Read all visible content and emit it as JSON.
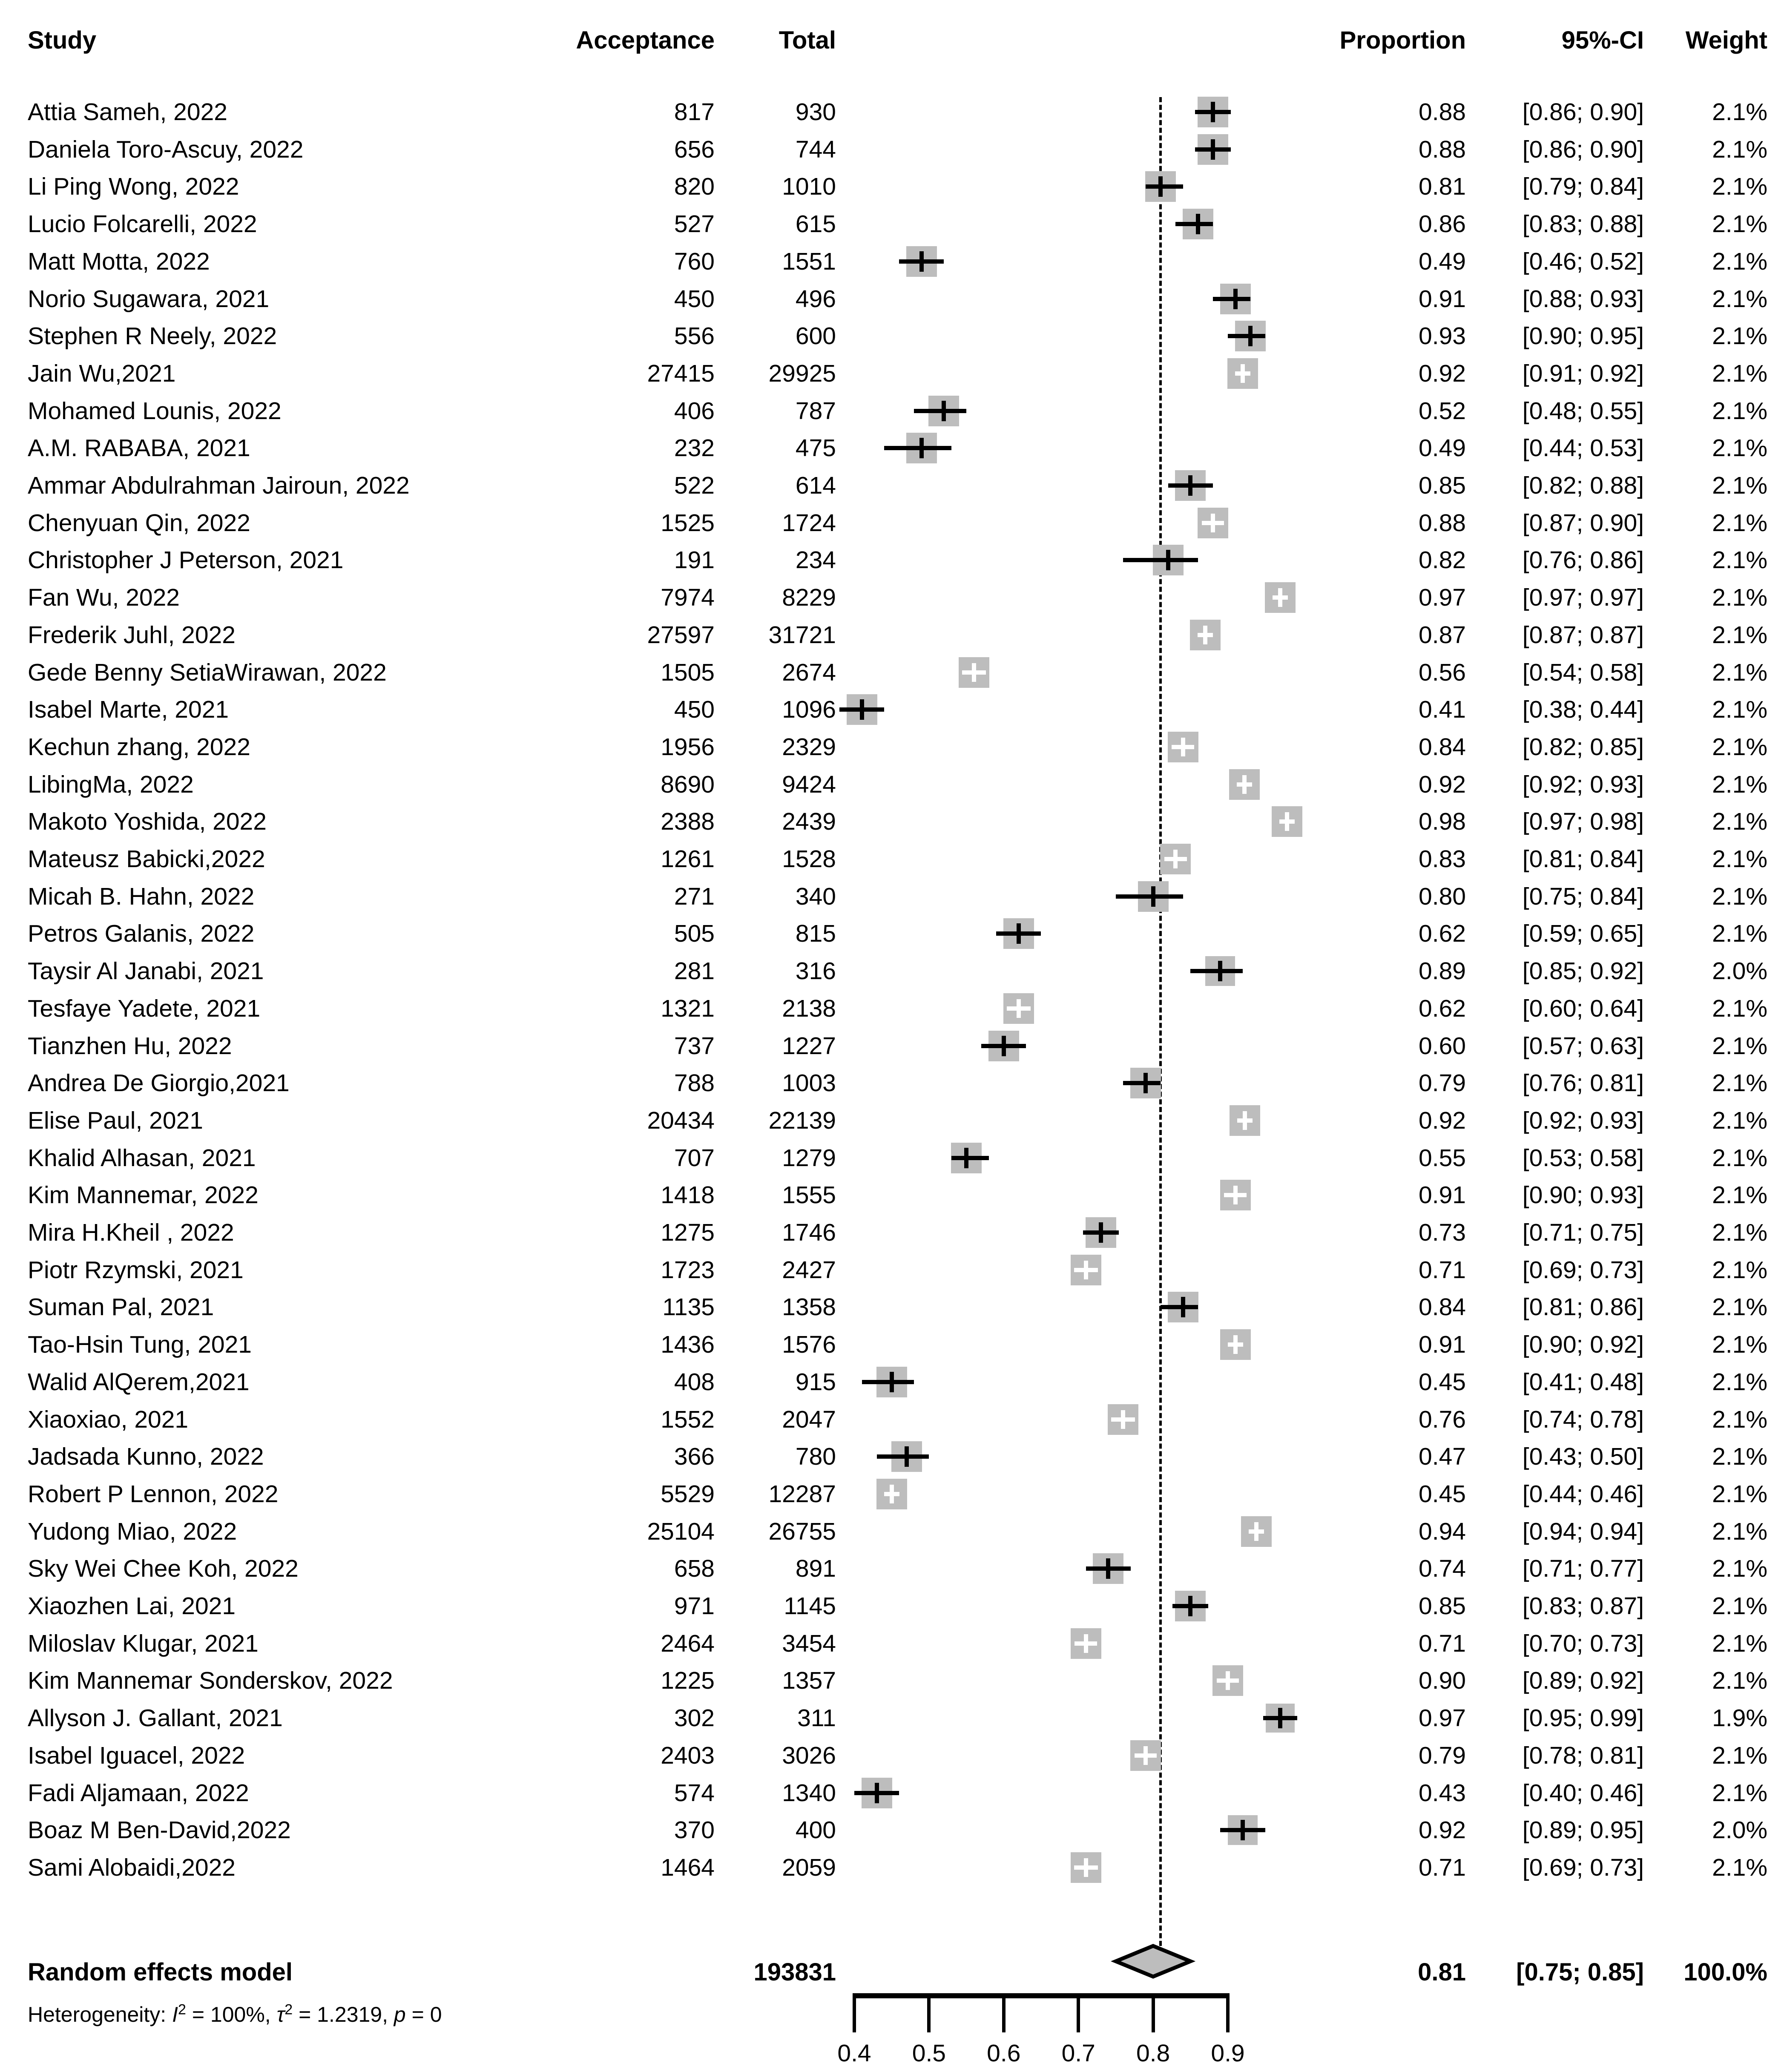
{
  "table": {
    "headers": {
      "study": "Study",
      "acceptance": "Acceptance",
      "total": "Total",
      "proportion": "Proportion",
      "ci": "95%-CI",
      "weight": "Weight"
    },
    "summary": {
      "label": "Random effects model",
      "total": "193831",
      "proportion": "0.81",
      "ci": "[0.75; 0.85]",
      "weight": "100.0%"
    },
    "heterogeneity": {
      "prefix": "Heterogeneity: ",
      "i_sym": "I",
      "sup1": "2",
      "seg1": " = 100%, ",
      "tau_sym": "τ",
      "sup2": "2",
      "seg2": " = 1.2319, ",
      "p_sym": "p",
      "seg3": " = 0"
    }
  },
  "chart_data": {
    "type": "forest",
    "xlabel": "",
    "axis_ticks": [
      0.4,
      0.5,
      0.6,
      0.7,
      0.8,
      0.9
    ],
    "axis_range": [
      0.4,
      0.9
    ],
    "ref_line": 0.81,
    "marker_color": "#bdbdbd",
    "line_color": "#000000",
    "summary_diamond": {
      "est": 0.81,
      "lo": 0.75,
      "hi": 0.85
    },
    "studies": [
      {
        "label": "Attia Sameh, 2022",
        "acceptance": "817",
        "total": "930",
        "proportion": "0.88",
        "ci": "[0.86; 0.90]",
        "weight": "2.1%",
        "est": 0.88,
        "lo": 0.86,
        "hi": 0.9,
        "w": 2.1,
        "marker": "black"
      },
      {
        "label": "Daniela Toro-Ascuy, 2022",
        "acceptance": "656",
        "total": "744",
        "proportion": "0.88",
        "ci": "[0.86; 0.90]",
        "weight": "2.1%",
        "est": 0.88,
        "lo": 0.86,
        "hi": 0.9,
        "w": 2.1,
        "marker": "black"
      },
      {
        "label": "Li Ping Wong, 2022",
        "acceptance": "820",
        "total": "1010",
        "proportion": "0.81",
        "ci": "[0.79; 0.84]",
        "weight": "2.1%",
        "est": 0.81,
        "lo": 0.79,
        "hi": 0.84,
        "w": 2.1,
        "marker": "black"
      },
      {
        "label": "Lucio Folcarelli, 2022",
        "acceptance": "527",
        "total": "615",
        "proportion": "0.86",
        "ci": "[0.83; 0.88]",
        "weight": "2.1%",
        "est": 0.86,
        "lo": 0.83,
        "hi": 0.88,
        "w": 2.1,
        "marker": "black"
      },
      {
        "label": "Matt Motta, 2022",
        "acceptance": "760",
        "total": "1551",
        "proportion": "0.49",
        "ci": "[0.46; 0.52]",
        "weight": "2.1%",
        "est": 0.49,
        "lo": 0.46,
        "hi": 0.52,
        "w": 2.1,
        "marker": "black"
      },
      {
        "label": "Norio Sugawara, 2021",
        "acceptance": "450",
        "total": "496",
        "proportion": "0.91",
        "ci": "[0.88; 0.93]",
        "weight": "2.1%",
        "est": 0.91,
        "lo": 0.88,
        "hi": 0.93,
        "w": 2.1,
        "marker": "black"
      },
      {
        "label": "Stephen R Neely, 2022",
        "acceptance": "556",
        "total": "600",
        "proportion": "0.93",
        "ci": "[0.90; 0.95]",
        "weight": "2.1%",
        "est": 0.93,
        "lo": 0.9,
        "hi": 0.95,
        "w": 2.1,
        "marker": "black"
      },
      {
        "label": "Jain Wu,2021",
        "acceptance": "27415",
        "total": "29925",
        "proportion": "0.92",
        "ci": "[0.91; 0.92]",
        "weight": "2.1%",
        "est": 0.92,
        "lo": 0.91,
        "hi": 0.92,
        "w": 2.1,
        "marker": "white"
      },
      {
        "label": "Mohamed Lounis, 2022",
        "acceptance": "406",
        "total": "787",
        "proportion": "0.52",
        "ci": "[0.48; 0.55]",
        "weight": "2.1%",
        "est": 0.52,
        "lo": 0.48,
        "hi": 0.55,
        "w": 2.1,
        "marker": "black"
      },
      {
        "label": "A.M. RABABA, 2021",
        "acceptance": "232",
        "total": "475",
        "proportion": "0.49",
        "ci": "[0.44; 0.53]",
        "weight": "2.1%",
        "est": 0.49,
        "lo": 0.44,
        "hi": 0.53,
        "w": 2.1,
        "marker": "black"
      },
      {
        "label": "Ammar Abdulrahman Jairoun, 2022",
        "acceptance": "522",
        "total": "614",
        "proportion": "0.85",
        "ci": "[0.82; 0.88]",
        "weight": "2.1%",
        "est": 0.85,
        "lo": 0.82,
        "hi": 0.88,
        "w": 2.1,
        "marker": "black"
      },
      {
        "label": "Chenyuan Qin, 2022",
        "acceptance": "1525",
        "total": "1724",
        "proportion": "0.88",
        "ci": "[0.87; 0.90]",
        "weight": "2.1%",
        "est": 0.88,
        "lo": 0.87,
        "hi": 0.9,
        "w": 2.1,
        "marker": "white"
      },
      {
        "label": "Christopher J Peterson, 2021",
        "acceptance": "191",
        "total": "234",
        "proportion": "0.82",
        "ci": "[0.76; 0.86]",
        "weight": "2.1%",
        "est": 0.82,
        "lo": 0.76,
        "hi": 0.86,
        "w": 2.1,
        "marker": "black"
      },
      {
        "label": "Fan Wu, 2022",
        "acceptance": "7974",
        "total": "8229",
        "proportion": "0.97",
        "ci": "[0.97; 0.97]",
        "weight": "2.1%",
        "est": 0.97,
        "lo": 0.965,
        "hi": 0.973,
        "w": 2.1,
        "marker": "white"
      },
      {
        "label": "Frederik Juhl, 2022",
        "acceptance": "27597",
        "total": "31721",
        "proportion": "0.87",
        "ci": "[0.87; 0.87]",
        "weight": "2.1%",
        "est": 0.87,
        "lo": 0.866,
        "hi": 0.874,
        "w": 2.1,
        "marker": "white"
      },
      {
        "label": "Gede Benny SetiaWirawan, 2022",
        "acceptance": "1505",
        "total": "2674",
        "proportion": "0.56",
        "ci": "[0.54; 0.58]",
        "weight": "2.1%",
        "est": 0.56,
        "lo": 0.54,
        "hi": 0.58,
        "w": 2.1,
        "marker": "white"
      },
      {
        "label": "Isabel Marte, 2021",
        "acceptance": "450",
        "total": "1096",
        "proportion": "0.41",
        "ci": "[0.38; 0.44]",
        "weight": "2.1%",
        "est": 0.41,
        "lo": 0.38,
        "hi": 0.44,
        "w": 2.1,
        "marker": "black"
      },
      {
        "label": "Kechun zhang, 2022",
        "acceptance": "1956",
        "total": "2329",
        "proportion": "0.84",
        "ci": "[0.82; 0.85]",
        "weight": "2.1%",
        "est": 0.84,
        "lo": 0.82,
        "hi": 0.85,
        "w": 2.1,
        "marker": "white"
      },
      {
        "label": "LibingMa, 2022",
        "acceptance": "8690",
        "total": "9424",
        "proportion": "0.92",
        "ci": "[0.92; 0.93]",
        "weight": "2.1%",
        "est": 0.922,
        "lo": 0.917,
        "hi": 0.928,
        "w": 2.1,
        "marker": "white"
      },
      {
        "label": "Makoto Yoshida, 2022",
        "acceptance": "2388",
        "total": "2439",
        "proportion": "0.98",
        "ci": "[0.97; 0.98]",
        "weight": "2.1%",
        "est": 0.979,
        "lo": 0.973,
        "hi": 0.984,
        "w": 2.1,
        "marker": "white"
      },
      {
        "label": "Mateusz Babicki,2022",
        "acceptance": "1261",
        "total": "1528",
        "proportion": "0.83",
        "ci": "[0.81; 0.84]",
        "weight": "2.1%",
        "est": 0.83,
        "lo": 0.81,
        "hi": 0.84,
        "w": 2.1,
        "marker": "white"
      },
      {
        "label": "Micah B. Hahn, 2022",
        "acceptance": "271",
        "total": "340",
        "proportion": "0.80",
        "ci": "[0.75; 0.84]",
        "weight": "2.1%",
        "est": 0.8,
        "lo": 0.75,
        "hi": 0.84,
        "w": 2.1,
        "marker": "black"
      },
      {
        "label": "Petros Galanis, 2022",
        "acceptance": "505",
        "total": "815",
        "proportion": "0.62",
        "ci": "[0.59; 0.65]",
        "weight": "2.1%",
        "est": 0.62,
        "lo": 0.59,
        "hi": 0.65,
        "w": 2.1,
        "marker": "black"
      },
      {
        "label": "Taysir Al Janabi, 2021",
        "acceptance": "281",
        "total": "316",
        "proportion": "0.89",
        "ci": "[0.85; 0.92]",
        "weight": "2.0%",
        "est": 0.89,
        "lo": 0.85,
        "hi": 0.92,
        "w": 2.0,
        "marker": "black"
      },
      {
        "label": "Tesfaye Yadete, 2021",
        "acceptance": "1321",
        "total": "2138",
        "proportion": "0.62",
        "ci": "[0.60; 0.64]",
        "weight": "2.1%",
        "est": 0.62,
        "lo": 0.6,
        "hi": 0.64,
        "w": 2.1,
        "marker": "white"
      },
      {
        "label": "Tianzhen Hu, 2022",
        "acceptance": "737",
        "total": "1227",
        "proportion": "0.60",
        "ci": "[0.57; 0.63]",
        "weight": "2.1%",
        "est": 0.6,
        "lo": 0.57,
        "hi": 0.63,
        "w": 2.1,
        "marker": "black"
      },
      {
        "label": "Andrea De Giorgio,2021",
        "acceptance": "788",
        "total": "1003",
        "proportion": "0.79",
        "ci": "[0.76; 0.81]",
        "weight": "2.1%",
        "est": 0.79,
        "lo": 0.76,
        "hi": 0.81,
        "w": 2.1,
        "marker": "black"
      },
      {
        "label": "Elise Paul, 2021",
        "acceptance": "20434",
        "total": "22139",
        "proportion": "0.92",
        "ci": "[0.92; 0.93]",
        "weight": "2.1%",
        "est": 0.923,
        "lo": 0.919,
        "hi": 0.927,
        "w": 2.1,
        "marker": "white"
      },
      {
        "label": "Khalid Alhasan, 2021",
        "acceptance": "707",
        "total": "1279",
        "proportion": "0.55",
        "ci": "[0.53; 0.58]",
        "weight": "2.1%",
        "est": 0.55,
        "lo": 0.53,
        "hi": 0.58,
        "w": 2.1,
        "marker": "black"
      },
      {
        "label": "Kim Mannemar, 2022",
        "acceptance": "1418",
        "total": "1555",
        "proportion": "0.91",
        "ci": "[0.90; 0.93]",
        "weight": "2.1%",
        "est": 0.91,
        "lo": 0.9,
        "hi": 0.93,
        "w": 2.1,
        "marker": "white"
      },
      {
        "label": "Mira H.Kheil , 2022",
        "acceptance": "1275",
        "total": "1746",
        "proportion": "0.73",
        "ci": "[0.71; 0.75]",
        "weight": "2.1%",
        "est": 0.73,
        "lo": 0.71,
        "hi": 0.75,
        "w": 2.1,
        "marker": "black"
      },
      {
        "label": "Piotr Rzymski, 2021",
        "acceptance": "1723",
        "total": "2427",
        "proportion": "0.71",
        "ci": "[0.69; 0.73]",
        "weight": "2.1%",
        "est": 0.71,
        "lo": 0.69,
        "hi": 0.73,
        "w": 2.1,
        "marker": "white"
      },
      {
        "label": "Suman Pal, 2021",
        "acceptance": "1135",
        "total": "1358",
        "proportion": "0.84",
        "ci": "[0.81; 0.86]",
        "weight": "2.1%",
        "est": 0.84,
        "lo": 0.81,
        "hi": 0.86,
        "w": 2.1,
        "marker": "black"
      },
      {
        "label": "Tao-Hsin Tung, 2021",
        "acceptance": "1436",
        "total": "1576",
        "proportion": "0.91",
        "ci": "[0.90; 0.92]",
        "weight": "2.1%",
        "est": 0.91,
        "lo": 0.9,
        "hi": 0.92,
        "w": 2.1,
        "marker": "white"
      },
      {
        "label": "Walid AlQerem,2021",
        "acceptance": "408",
        "total": "915",
        "proportion": "0.45",
        "ci": "[0.41; 0.48]",
        "weight": "2.1%",
        "est": 0.45,
        "lo": 0.41,
        "hi": 0.48,
        "w": 2.1,
        "marker": "black"
      },
      {
        "label": "Xiaoxiao, 2021",
        "acceptance": "1552",
        "total": "2047",
        "proportion": "0.76",
        "ci": "[0.74; 0.78]",
        "weight": "2.1%",
        "est": 0.76,
        "lo": 0.74,
        "hi": 0.78,
        "w": 2.1,
        "marker": "white"
      },
      {
        "label": "Jadsada Kunno, 2022",
        "acceptance": "366",
        "total": "780",
        "proportion": "0.47",
        "ci": "[0.43; 0.50]",
        "weight": "2.1%",
        "est": 0.47,
        "lo": 0.43,
        "hi": 0.5,
        "w": 2.1,
        "marker": "black"
      },
      {
        "label": "Robert P Lennon, 2022",
        "acceptance": "5529",
        "total": "12287",
        "proportion": "0.45",
        "ci": "[0.44; 0.46]",
        "weight": "2.1%",
        "est": 0.45,
        "lo": 0.44,
        "hi": 0.46,
        "w": 2.1,
        "marker": "white"
      },
      {
        "label": "Yudong Miao, 2022",
        "acceptance": "25104",
        "total": "26755",
        "proportion": "0.94",
        "ci": "[0.94; 0.94]",
        "weight": "2.1%",
        "est": 0.938,
        "lo": 0.935,
        "hi": 0.941,
        "w": 2.1,
        "marker": "white"
      },
      {
        "label": "Sky Wei Chee Koh, 2022",
        "acceptance": "658",
        "total": "891",
        "proportion": "0.74",
        "ci": "[0.71; 0.77]",
        "weight": "2.1%",
        "est": 0.74,
        "lo": 0.71,
        "hi": 0.77,
        "w": 2.1,
        "marker": "black"
      },
      {
        "label": "Xiaozhen Lai, 2021",
        "acceptance": "971",
        "total": "1145",
        "proportion": "0.85",
        "ci": "[0.83; 0.87]",
        "weight": "2.1%",
        "est": 0.85,
        "lo": 0.83,
        "hi": 0.87,
        "w": 2.1,
        "marker": "black"
      },
      {
        "label": "Miloslav Klugar, 2021",
        "acceptance": "2464",
        "total": "3454",
        "proportion": "0.71",
        "ci": "[0.70; 0.73]",
        "weight": "2.1%",
        "est": 0.71,
        "lo": 0.7,
        "hi": 0.73,
        "w": 2.1,
        "marker": "white"
      },
      {
        "label": "Kim Mannemar Sonderskov, 2022",
        "acceptance": "1225",
        "total": "1357",
        "proportion": "0.90",
        "ci": "[0.89; 0.92]",
        "weight": "2.1%",
        "est": 0.9,
        "lo": 0.89,
        "hi": 0.92,
        "w": 2.1,
        "marker": "white"
      },
      {
        "label": "Allyson J. Gallant, 2021",
        "acceptance": "302",
        "total": "311",
        "proportion": "0.97",
        "ci": "[0.95; 0.99]",
        "weight": "1.9%",
        "est": 0.97,
        "lo": 0.95,
        "hi": 0.99,
        "w": 1.9,
        "marker": "black"
      },
      {
        "label": "Isabel Iguacel, 2022",
        "acceptance": "2403",
        "total": "3026",
        "proportion": "0.79",
        "ci": "[0.78; 0.81]",
        "weight": "2.1%",
        "est": 0.79,
        "lo": 0.78,
        "hi": 0.81,
        "w": 2.1,
        "marker": "white"
      },
      {
        "label": "Fadi Aljamaan, 2022",
        "acceptance": "574",
        "total": "1340",
        "proportion": "0.43",
        "ci": "[0.40; 0.46]",
        "weight": "2.1%",
        "est": 0.43,
        "lo": 0.4,
        "hi": 0.46,
        "w": 2.1,
        "marker": "black"
      },
      {
        "label": "Boaz M Ben-David,2022",
        "acceptance": "370",
        "total": "400",
        "proportion": "0.92",
        "ci": "[0.89; 0.95]",
        "weight": "2.0%",
        "est": 0.92,
        "lo": 0.89,
        "hi": 0.95,
        "w": 2.0,
        "marker": "black"
      },
      {
        "label": "Sami Alobaidi,2022",
        "acceptance": "1464",
        "total": "2059",
        "proportion": "0.71",
        "ci": "[0.69; 0.73]",
        "weight": "2.1%",
        "est": 0.71,
        "lo": 0.69,
        "hi": 0.73,
        "w": 2.1,
        "marker": "white"
      }
    ]
  }
}
